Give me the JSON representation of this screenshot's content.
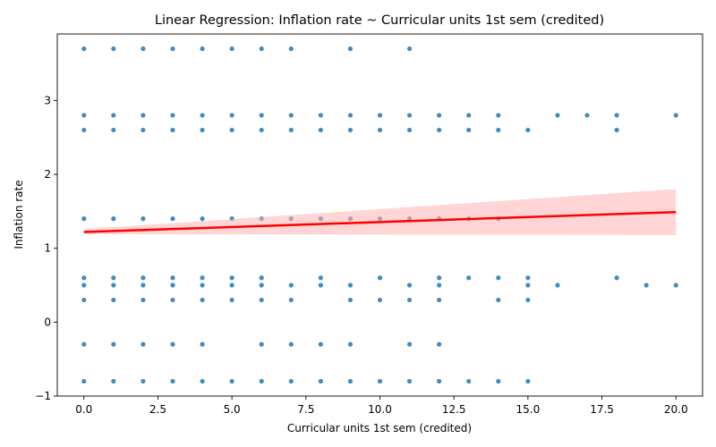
{
  "chart_data": {
    "type": "scatter",
    "title": "Linear Regression: Inflation rate ~ Curricular units 1st sem (credited)",
    "xlabel": "Curricular units 1st sem (credited)",
    "ylabel": "Inflation rate",
    "xlim": [
      -0.9,
      20.9
    ],
    "ylim": [
      -1.0,
      3.9
    ],
    "xticks": [
      0.0,
      2.5,
      5.0,
      7.5,
      10.0,
      12.5,
      15.0,
      17.5,
      20.0
    ],
    "xtick_labels": [
      "0.0",
      "2.5",
      "5.0",
      "7.5",
      "10.0",
      "12.5",
      "15.0",
      "17.5",
      "20.0"
    ],
    "yticks": [
      -1,
      0,
      1,
      2,
      3
    ],
    "ytick_labels": [
      "−1",
      "0",
      "1",
      "2",
      "3"
    ],
    "grid": false,
    "point_color": "#1f77b4",
    "line_color": "#ff0000",
    "band_color": "#ffb3b3",
    "series": [
      {
        "points": [
          [
            0,
            3.7
          ],
          [
            1,
            3.7
          ],
          [
            2,
            3.7
          ],
          [
            3,
            3.7
          ],
          [
            4,
            3.7
          ],
          [
            5,
            3.7
          ],
          [
            6,
            3.7
          ],
          [
            7,
            3.7
          ],
          [
            9,
            3.7
          ],
          [
            11,
            3.7
          ],
          [
            0,
            2.8
          ],
          [
            1,
            2.8
          ],
          [
            2,
            2.8
          ],
          [
            3,
            2.8
          ],
          [
            4,
            2.8
          ],
          [
            5,
            2.8
          ],
          [
            6,
            2.8
          ],
          [
            7,
            2.8
          ],
          [
            8,
            2.8
          ],
          [
            9,
            2.8
          ],
          [
            10,
            2.8
          ],
          [
            11,
            2.8
          ],
          [
            12,
            2.8
          ],
          [
            13,
            2.8
          ],
          [
            14,
            2.8
          ],
          [
            16,
            2.8
          ],
          [
            17,
            2.8
          ],
          [
            18,
            2.8
          ],
          [
            20,
            2.8
          ],
          [
            0,
            2.6
          ],
          [
            1,
            2.6
          ],
          [
            2,
            2.6
          ],
          [
            3,
            2.6
          ],
          [
            4,
            2.6
          ],
          [
            5,
            2.6
          ],
          [
            6,
            2.6
          ],
          [
            7,
            2.6
          ],
          [
            8,
            2.6
          ],
          [
            9,
            2.6
          ],
          [
            10,
            2.6
          ],
          [
            11,
            2.6
          ],
          [
            12,
            2.6
          ],
          [
            13,
            2.6
          ],
          [
            14,
            2.6
          ],
          [
            15,
            2.6
          ],
          [
            18,
            2.6
          ],
          [
            0,
            1.4
          ],
          [
            1,
            1.4
          ],
          [
            2,
            1.4
          ],
          [
            3,
            1.4
          ],
          [
            4,
            1.4
          ],
          [
            5,
            1.4
          ],
          [
            6,
            1.4
          ],
          [
            7,
            1.4
          ],
          [
            8,
            1.4
          ],
          [
            9,
            1.4
          ],
          [
            10,
            1.4
          ],
          [
            11,
            1.4
          ],
          [
            12,
            1.4
          ],
          [
            13,
            1.4
          ],
          [
            14,
            1.4
          ],
          [
            0,
            0.6
          ],
          [
            1,
            0.6
          ],
          [
            2,
            0.6
          ],
          [
            3,
            0.6
          ],
          [
            4,
            0.6
          ],
          [
            5,
            0.6
          ],
          [
            6,
            0.6
          ],
          [
            8,
            0.6
          ],
          [
            10,
            0.6
          ],
          [
            12,
            0.6
          ],
          [
            13,
            0.6
          ],
          [
            14,
            0.6
          ],
          [
            15,
            0.6
          ],
          [
            18,
            0.6
          ],
          [
            0,
            0.5
          ],
          [
            1,
            0.5
          ],
          [
            2,
            0.5
          ],
          [
            3,
            0.5
          ],
          [
            4,
            0.5
          ],
          [
            5,
            0.5
          ],
          [
            6,
            0.5
          ],
          [
            7,
            0.5
          ],
          [
            8,
            0.5
          ],
          [
            9,
            0.5
          ],
          [
            11,
            0.5
          ],
          [
            12,
            0.5
          ],
          [
            15,
            0.5
          ],
          [
            16,
            0.5
          ],
          [
            19,
            0.5
          ],
          [
            20,
            0.5
          ],
          [
            0,
            0.3
          ],
          [
            1,
            0.3
          ],
          [
            2,
            0.3
          ],
          [
            3,
            0.3
          ],
          [
            4,
            0.3
          ],
          [
            5,
            0.3
          ],
          [
            6,
            0.3
          ],
          [
            7,
            0.3
          ],
          [
            9,
            0.3
          ],
          [
            10,
            0.3
          ],
          [
            11,
            0.3
          ],
          [
            12,
            0.3
          ],
          [
            14,
            0.3
          ],
          [
            15,
            0.3
          ],
          [
            0,
            -0.3
          ],
          [
            1,
            -0.3
          ],
          [
            2,
            -0.3
          ],
          [
            3,
            -0.3
          ],
          [
            4,
            -0.3
          ],
          [
            6,
            -0.3
          ],
          [
            7,
            -0.3
          ],
          [
            8,
            -0.3
          ],
          [
            9,
            -0.3
          ],
          [
            11,
            -0.3
          ],
          [
            12,
            -0.3
          ],
          [
            0,
            -0.8
          ],
          [
            1,
            -0.8
          ],
          [
            2,
            -0.8
          ],
          [
            3,
            -0.8
          ],
          [
            4,
            -0.8
          ],
          [
            5,
            -0.8
          ],
          [
            6,
            -0.8
          ],
          [
            7,
            -0.8
          ],
          [
            8,
            -0.8
          ],
          [
            9,
            -0.8
          ],
          [
            10,
            -0.8
          ],
          [
            11,
            -0.8
          ],
          [
            12,
            -0.8
          ],
          [
            13,
            -0.8
          ],
          [
            14,
            -0.8
          ],
          [
            15,
            -0.8
          ]
        ]
      }
    ],
    "regression": {
      "x": [
        0,
        20
      ],
      "y": [
        1.22,
        1.49
      ],
      "ci_lower": [
        1.19,
        1.18
      ],
      "ci_upper": [
        1.26,
        1.8
      ]
    }
  }
}
